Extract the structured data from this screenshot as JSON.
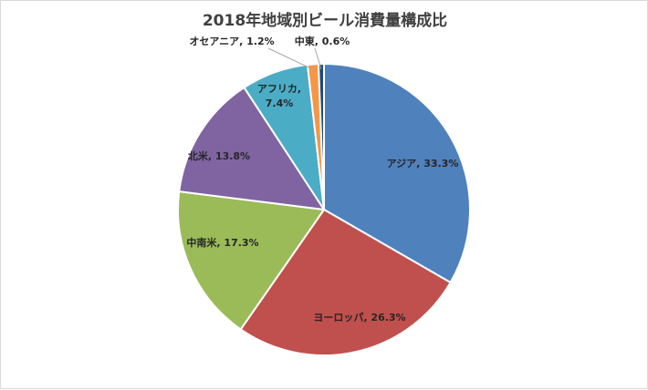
{
  "chart_data": {
    "type": "pie",
    "title": "2018年地域別ビール消費量構成比",
    "categories": [
      "アジア",
      "ヨーロッパ",
      "中南米",
      "北米",
      "アフリカ",
      "オセアニア",
      "中東"
    ],
    "values": [
      33.3,
      26.3,
      17.3,
      13.8,
      7.4,
      1.2,
      0.6
    ],
    "data_labels": [
      "アジア, 33.3%",
      "ヨーロッパ, 26.3%",
      "中南米, 17.3%",
      "北米, 13.8%",
      "アフリカ, 7.4%",
      "オセアニア, 1.2%",
      "中東, 0.6%"
    ],
    "colors": [
      "#4f81bd",
      "#c0504d",
      "#9bbb59",
      "#8064a2",
      "#4bacc6",
      "#f79646",
      "#1f497d"
    ],
    "start_angle_deg": 0,
    "direction": "clockwise",
    "legend": "none"
  }
}
